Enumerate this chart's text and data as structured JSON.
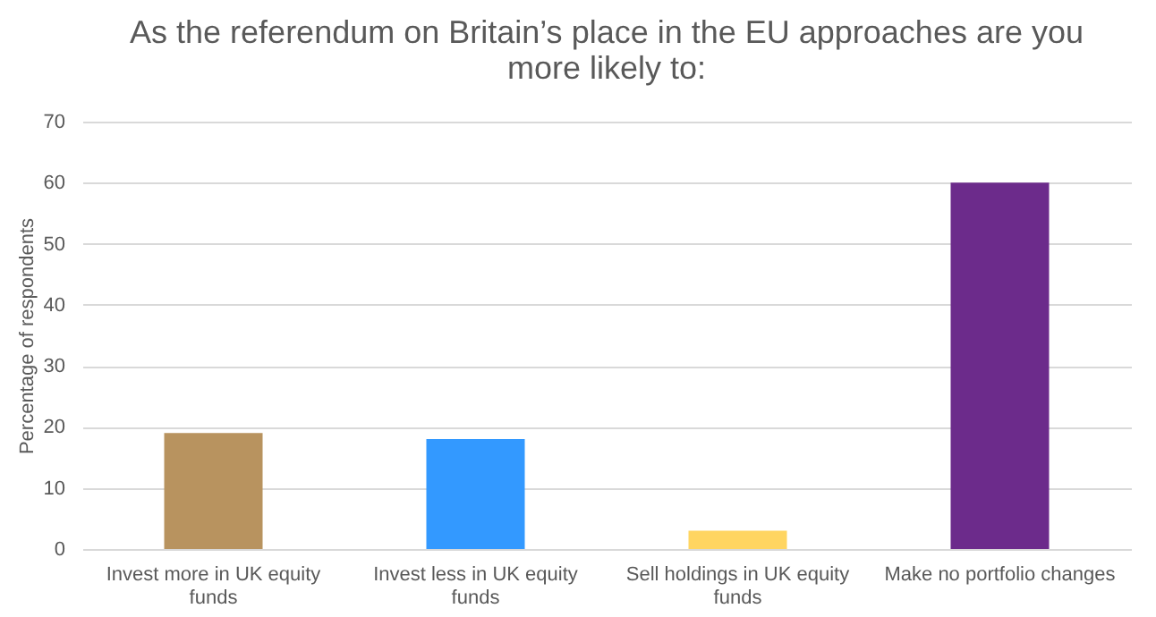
{
  "chart_data": {
    "type": "bar",
    "title": "As the referendum on Britain’s place in the EU approaches are you more likely to:",
    "ylabel": "Percentage of respondents",
    "categories": [
      "Invest more in UK equity funds",
      "Invest less in UK equity funds",
      "Sell holdings in UK equity funds",
      "Make no portfolio changes"
    ],
    "values": [
      19,
      18,
      3,
      60
    ],
    "colors": [
      "#b8935f",
      "#3399ff",
      "#ffd561",
      "#6c2b8b"
    ],
    "ylim": [
      0,
      70
    ],
    "yticks": [
      0,
      10,
      20,
      30,
      40,
      50,
      60,
      70
    ],
    "grid": "y"
  }
}
